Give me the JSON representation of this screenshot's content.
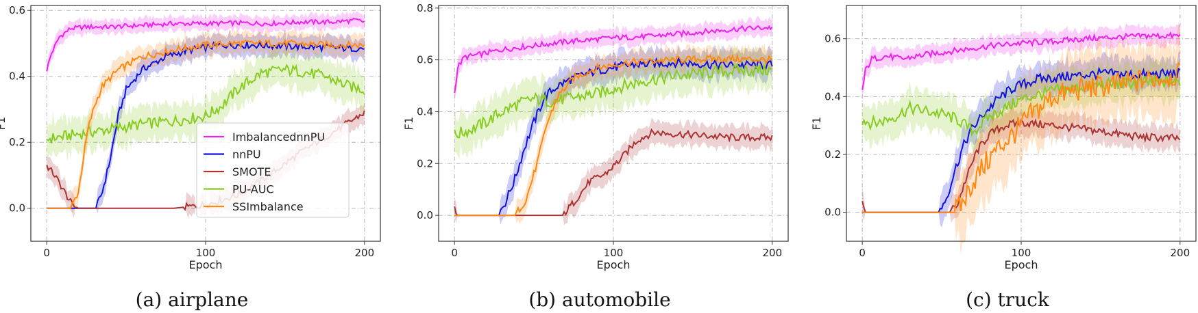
{
  "chart_data": [
    {
      "type": "line",
      "caption": "(a) airplane",
      "xlabel": "Epoch",
      "ylabel": "F1",
      "xlim": [
        -10,
        210
      ],
      "ylim": [
        -0.1,
        0.615
      ],
      "xticks": [
        0,
        100,
        200
      ],
      "yticks": [
        0.0,
        0.2,
        0.4,
        0.6
      ],
      "ytick_labels": [
        "0.0",
        "0.2",
        "0.4",
        "0.6"
      ],
      "grid": true,
      "legend": "lower-right",
      "series": [
        {
          "name": "ImbalancednnPU",
          "color": "#ee22ee",
          "band": 0.02,
          "x": [
            0,
            3,
            8,
            15,
            25,
            40,
            60,
            80,
            100,
            120,
            140,
            160,
            180,
            195,
            200
          ],
          "y": [
            0.42,
            0.47,
            0.52,
            0.545,
            0.55,
            0.55,
            0.555,
            0.56,
            0.56,
            0.562,
            0.56,
            0.565,
            0.565,
            0.57,
            0.565
          ]
        },
        {
          "name": "nnPU",
          "color": "#1111dd",
          "band": 0.03,
          "x": [
            0,
            20,
            31,
            35,
            40,
            45,
            50,
            60,
            75,
            90,
            110,
            130,
            160,
            190,
            200
          ],
          "y": [
            0.0,
            0.0,
            0.0,
            0.05,
            0.15,
            0.28,
            0.36,
            0.42,
            0.46,
            0.48,
            0.495,
            0.495,
            0.49,
            0.485,
            0.485
          ]
        },
        {
          "name": "SMOTE",
          "color": "#aa3333",
          "band": 0.03,
          "x": [
            0,
            5,
            10,
            16,
            20,
            40,
            60,
            80,
            100,
            120,
            140,
            160,
            180,
            200
          ],
          "y": [
            0.13,
            0.1,
            0.06,
            0.01,
            0.0,
            0.0,
            0.0,
            0.0,
            0.01,
            0.04,
            0.1,
            0.17,
            0.23,
            0.29
          ]
        },
        {
          "name": "PU-AUC",
          "color": "#88cc22",
          "band": 0.05,
          "x": [
            0,
            20,
            40,
            60,
            80,
            100,
            110,
            120,
            135,
            150,
            160,
            175,
            190,
            200
          ],
          "y": [
            0.21,
            0.225,
            0.24,
            0.255,
            0.265,
            0.28,
            0.31,
            0.36,
            0.41,
            0.42,
            0.415,
            0.4,
            0.37,
            0.36
          ]
        },
        {
          "name": "SSImbalance",
          "color": "#ff8811",
          "band": 0.03,
          "x": [
            0,
            15,
            20,
            23,
            26,
            30,
            35,
            45,
            60,
            80,
            100,
            120,
            150,
            180,
            200
          ],
          "y": [
            0.0,
            0.0,
            0.05,
            0.15,
            0.24,
            0.31,
            0.37,
            0.42,
            0.46,
            0.48,
            0.495,
            0.5,
            0.5,
            0.495,
            0.495
          ]
        }
      ]
    },
    {
      "type": "line",
      "caption": "(b) automobile",
      "xlabel": "Epoch",
      "ylabel": "F1",
      "xlim": [
        -10,
        210
      ],
      "ylim": [
        -0.1,
        0.81
      ],
      "xticks": [
        0,
        100,
        200
      ],
      "yticks": [
        0.0,
        0.2,
        0.4,
        0.6,
        0.8
      ],
      "ytick_labels": [
        "0.0",
        "0.2",
        "0.4",
        "0.6",
        "0.8"
      ],
      "grid": true,
      "series": [
        {
          "name": "ImbalancednnPU",
          "color": "#ee22ee",
          "band": 0.03,
          "x": [
            0,
            2,
            6,
            15,
            30,
            50,
            70,
            100,
            120,
            140,
            160,
            180,
            200
          ],
          "y": [
            0.47,
            0.57,
            0.61,
            0.62,
            0.64,
            0.655,
            0.67,
            0.685,
            0.69,
            0.7,
            0.71,
            0.72,
            0.725
          ]
        },
        {
          "name": "nnPU",
          "color": "#1111dd",
          "band": 0.05,
          "x": [
            0,
            20,
            27,
            32,
            38,
            44,
            50,
            57,
            65,
            75,
            90,
            110,
            140,
            170,
            200
          ],
          "y": [
            0.0,
            0.0,
            0.0,
            0.05,
            0.14,
            0.26,
            0.36,
            0.46,
            0.5,
            0.53,
            0.56,
            0.58,
            0.59,
            0.58,
            0.58
          ]
        },
        {
          "name": "SMOTE",
          "color": "#aa3333",
          "band": 0.04,
          "x": [
            0,
            2,
            5,
            20,
            40,
            60,
            68,
            75,
            85,
            95,
            105,
            115,
            125,
            150,
            175,
            200
          ],
          "y": [
            0.04,
            0.0,
            0.0,
            0.0,
            0.0,
            0.0,
            0.0,
            0.05,
            0.13,
            0.16,
            0.22,
            0.29,
            0.32,
            0.31,
            0.3,
            0.3
          ]
        },
        {
          "name": "PU-AUC",
          "color": "#88cc22",
          "band": 0.07,
          "x": [
            0,
            10,
            20,
            30,
            40,
            50,
            60,
            70,
            80,
            90,
            100,
            120,
            140,
            160,
            180,
            200
          ],
          "y": [
            0.31,
            0.33,
            0.36,
            0.4,
            0.43,
            0.45,
            0.44,
            0.45,
            0.46,
            0.47,
            0.49,
            0.52,
            0.54,
            0.55,
            0.56,
            0.56
          ]
        },
        {
          "name": "SSImbalance",
          "color": "#ff8811",
          "band": 0.04,
          "x": [
            0,
            30,
            38,
            45,
            52,
            58,
            65,
            75,
            90,
            110,
            140,
            170,
            200
          ],
          "y": [
            0.0,
            0.0,
            0.0,
            0.06,
            0.2,
            0.35,
            0.46,
            0.53,
            0.57,
            0.59,
            0.6,
            0.605,
            0.6
          ]
        }
      ]
    },
    {
      "type": "line",
      "caption": "(c) truck",
      "xlabel": "Epoch",
      "ylabel": "F1",
      "xlim": [
        -10,
        210
      ],
      "ylim": [
        -0.1,
        0.715
      ],
      "xticks": [
        0,
        100,
        200
      ],
      "yticks": [
        0.0,
        0.2,
        0.4,
        0.6
      ],
      "ytick_labels": [
        "0.0",
        "0.2",
        "0.4",
        "0.6"
      ],
      "grid": true,
      "series": [
        {
          "name": "ImbalancednnPU",
          "color": "#ee22ee",
          "band": 0.03,
          "x": [
            0,
            2,
            6,
            15,
            25,
            40,
            60,
            80,
            100,
            120,
            140,
            160,
            180,
            200
          ],
          "y": [
            0.42,
            0.49,
            0.53,
            0.54,
            0.53,
            0.545,
            0.56,
            0.575,
            0.585,
            0.59,
            0.6,
            0.605,
            0.61,
            0.61
          ]
        },
        {
          "name": "nnPU",
          "color": "#1111dd",
          "band": 0.05,
          "x": [
            0,
            30,
            48,
            53,
            58,
            63,
            68,
            75,
            85,
            95,
            110,
            130,
            150,
            175,
            200
          ],
          "y": [
            0.0,
            0.0,
            0.0,
            0.05,
            0.14,
            0.22,
            0.28,
            0.33,
            0.39,
            0.43,
            0.46,
            0.47,
            0.48,
            0.475,
            0.48
          ]
        },
        {
          "name": "SMOTE",
          "color": "#aa3333",
          "band": 0.04,
          "x": [
            0,
            2,
            5,
            30,
            55,
            60,
            65,
            72,
            80,
            90,
            100,
            120,
            150,
            175,
            200
          ],
          "y": [
            0.03,
            0.0,
            0.0,
            0.0,
            0.0,
            0.03,
            0.11,
            0.21,
            0.27,
            0.3,
            0.31,
            0.3,
            0.28,
            0.26,
            0.255
          ]
        },
        {
          "name": "PU-AUC",
          "color": "#88cc22",
          "band": 0.06,
          "x": [
            0,
            5,
            10,
            20,
            30,
            40,
            50,
            60,
            70,
            80,
            90,
            100,
            120,
            150,
            180,
            200
          ],
          "y": [
            0.32,
            0.31,
            0.31,
            0.33,
            0.36,
            0.35,
            0.34,
            0.32,
            0.28,
            0.33,
            0.36,
            0.39,
            0.42,
            0.44,
            0.45,
            0.45
          ]
        },
        {
          "name": "SSImbalance",
          "color": "#ff8811",
          "band": 0.12,
          "x": [
            0,
            40,
            58,
            63,
            68,
            75,
            85,
            95,
            105,
            120,
            140,
            160,
            180,
            200
          ],
          "y": [
            0.0,
            0.0,
            0.0,
            0.03,
            0.09,
            0.15,
            0.22,
            0.27,
            0.33,
            0.4,
            0.43,
            0.44,
            0.46,
            0.475
          ]
        }
      ]
    }
  ]
}
